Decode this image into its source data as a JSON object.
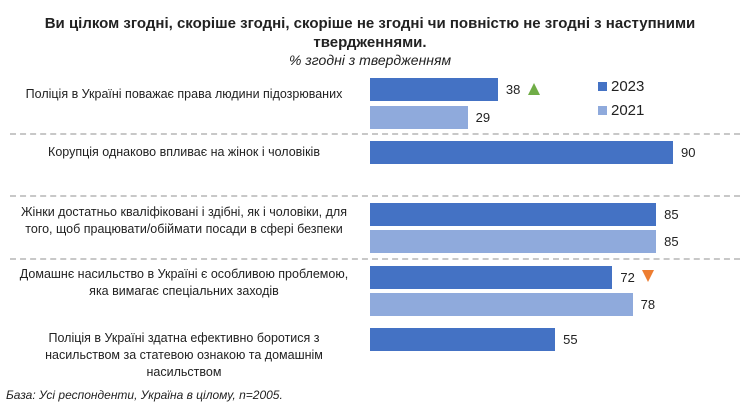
{
  "chart_data": {
    "type": "bar",
    "orientation": "horizontal",
    "title": "Ви цілком згодні, скоріше згодні, скоріше не згодні чи повністю не згодні з наступними твердженнями.",
    "subtitle": "% згодні з твердженням",
    "categories": [
      "Поліція в Україні поважає права людини підозрюваних",
      "Корупція однаково впливає на жінок і чоловіків",
      "Жінки достатньо кваліфіковані і здібні, як і чоловіки, для того, щоб працювати/обіймати посади в сфері безпеки",
      "Домашнє насильство в Україні є особливою проблемою, яка вимагає спеціальних заходів",
      "Поліція в Україні здатна ефективно боротися з насильством за статевою ознакою та домашнім насильством"
    ],
    "series": [
      {
        "name": "2023",
        "color": "#4472C4",
        "values": [
          38,
          90,
          85,
          72,
          55
        ]
      },
      {
        "name": "2021",
        "color": "#8FAADC",
        "values": [
          29,
          null,
          85,
          78,
          null
        ]
      }
    ],
    "change_markers": [
      {
        "category_index": 0,
        "direction": "up",
        "color": "#70AD47"
      },
      {
        "category_index": 3,
        "direction": "down",
        "color": "#ED7D31"
      }
    ],
    "xlim": [
      0,
      100
    ],
    "legend_position": "top-right",
    "grid": false
  },
  "footnote": "База: Усі респонденти, Україна в цілому, n=2005."
}
